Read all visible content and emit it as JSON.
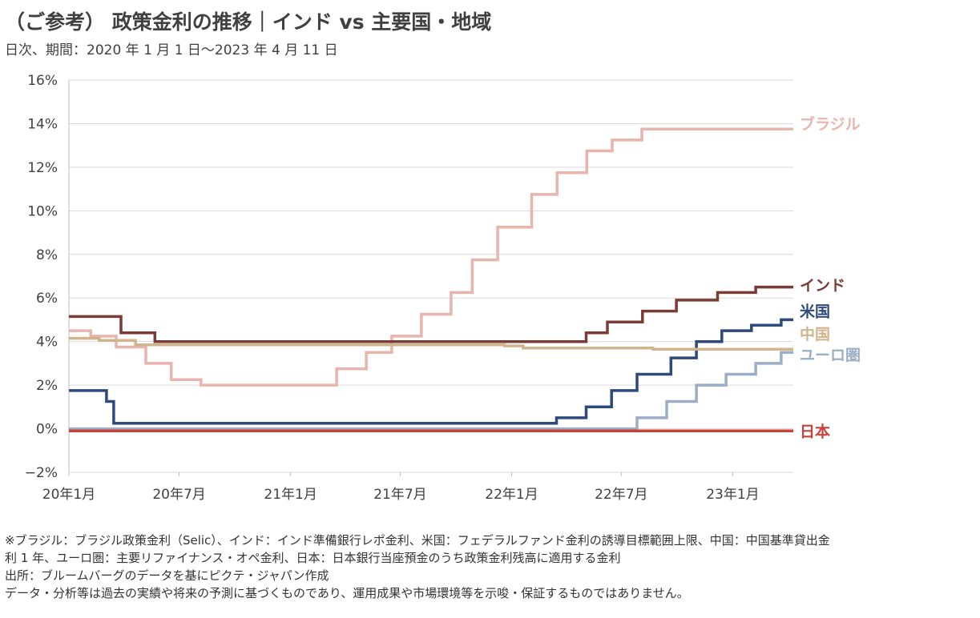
{
  "header": {
    "title": "（ご参考） 政策金利の推移｜インド vs 主要国・地域",
    "subtitle": "日次、期間：2020 年 1 月 1 日～2023 年 4 月 11 日"
  },
  "chart_data": {
    "type": "line",
    "x_unit": "date",
    "xlim": [
      "2020-01-01",
      "2023-04-11"
    ],
    "ylim": [
      -2,
      16
    ],
    "y_ticks": [
      -2,
      0,
      2,
      4,
      6,
      8,
      10,
      12,
      14,
      16
    ],
    "y_tick_labels": [
      "−2%",
      "0%",
      "2%",
      "4%",
      "6%",
      "8%",
      "10%",
      "12%",
      "14%",
      "16%"
    ],
    "x_ticks": [
      "2020-01-01",
      "2020-07-01",
      "2021-01-01",
      "2021-07-01",
      "2022-01-01",
      "2022-07-01",
      "2023-01-01"
    ],
    "x_tick_labels": [
      "20年1月",
      "20年7月",
      "21年1月",
      "21年7月",
      "22年1月",
      "22年7月",
      "23年1月"
    ],
    "grid": true,
    "series": [
      {
        "name": "ブラジル",
        "color": "#e8b4ae",
        "points": [
          [
            "2020-01-01",
            4.5
          ],
          [
            "2020-02-06",
            4.25
          ],
          [
            "2020-03-19",
            3.75
          ],
          [
            "2020-05-07",
            3.0
          ],
          [
            "2020-06-18",
            2.25
          ],
          [
            "2020-08-06",
            2.0
          ],
          [
            "2021-03-18",
            2.75
          ],
          [
            "2021-05-06",
            3.5
          ],
          [
            "2021-06-17",
            4.25
          ],
          [
            "2021-08-05",
            5.25
          ],
          [
            "2021-09-23",
            6.25
          ],
          [
            "2021-10-28",
            7.75
          ],
          [
            "2021-12-09",
            9.25
          ],
          [
            "2022-02-03",
            10.75
          ],
          [
            "2022-03-17",
            11.75
          ],
          [
            "2022-05-05",
            12.75
          ],
          [
            "2022-06-16",
            13.25
          ],
          [
            "2022-08-04",
            13.75
          ],
          [
            "2023-04-11",
            13.75
          ]
        ]
      },
      {
        "name": "インド",
        "color": "#7b3b36",
        "points": [
          [
            "2020-01-01",
            5.15
          ],
          [
            "2020-03-27",
            4.4
          ],
          [
            "2020-05-22",
            4.0
          ],
          [
            "2022-05-04",
            4.4
          ],
          [
            "2022-06-08",
            4.9
          ],
          [
            "2022-08-05",
            5.4
          ],
          [
            "2022-09-30",
            5.9
          ],
          [
            "2022-12-07",
            6.25
          ],
          [
            "2023-02-08",
            6.5
          ],
          [
            "2023-04-11",
            6.5
          ]
        ]
      },
      {
        "name": "米国",
        "color": "#2e4a7d",
        "points": [
          [
            "2020-01-01",
            1.75
          ],
          [
            "2020-03-03",
            1.25
          ],
          [
            "2020-03-15",
            0.25
          ],
          [
            "2022-03-16",
            0.5
          ],
          [
            "2022-05-04",
            1.0
          ],
          [
            "2022-06-15",
            1.75
          ],
          [
            "2022-07-27",
            2.5
          ],
          [
            "2022-09-21",
            3.25
          ],
          [
            "2022-11-02",
            4.0
          ],
          [
            "2022-12-14",
            4.5
          ],
          [
            "2023-02-01",
            4.75
          ],
          [
            "2023-03-22",
            5.0
          ],
          [
            "2023-04-11",
            5.0
          ]
        ]
      },
      {
        "name": "中国",
        "color": "#d2b48c",
        "points": [
          [
            "2020-01-01",
            4.15
          ],
          [
            "2020-01-20",
            4.15
          ],
          [
            "2020-02-20",
            4.05
          ],
          [
            "2020-04-20",
            3.85
          ],
          [
            "2021-12-20",
            3.8
          ],
          [
            "2022-01-20",
            3.7
          ],
          [
            "2022-08-22",
            3.65
          ],
          [
            "2023-04-11",
            3.65
          ]
        ]
      },
      {
        "name": "ユーロ圏",
        "color": "#9aaec6",
        "points": [
          [
            "2020-01-01",
            0.0
          ],
          [
            "2022-07-27",
            0.5
          ],
          [
            "2022-09-14",
            1.25
          ],
          [
            "2022-11-02",
            2.0
          ],
          [
            "2022-12-21",
            2.5
          ],
          [
            "2023-02-08",
            3.0
          ],
          [
            "2023-03-22",
            3.5
          ],
          [
            "2023-04-11",
            3.5
          ]
        ]
      },
      {
        "name": "日本",
        "color": "#c9423a",
        "points": [
          [
            "2020-01-01",
            -0.1
          ],
          [
            "2023-04-11",
            -0.1
          ]
        ]
      }
    ]
  },
  "notes": [
    "※ブラジル：ブラジル政策金利（Selic）、インド：インド準備銀行レポ金利、米国：フェデラルファンド金利の誘導目標範囲上限、中国：中国基準貸出金",
    "利 1 年、ユーロ圏：主要リファイナンス・オペ金利、日本：日本銀行当座預金のうち政策金利残高に適用する金利",
    "出所：ブルームバーグのデータを基にピクテ・ジャパン作成",
    "データ・分析等は過去の実績や将来の予測に基づくものであり、運用成果や市場環境等を示唆・保証するものではありません。"
  ]
}
